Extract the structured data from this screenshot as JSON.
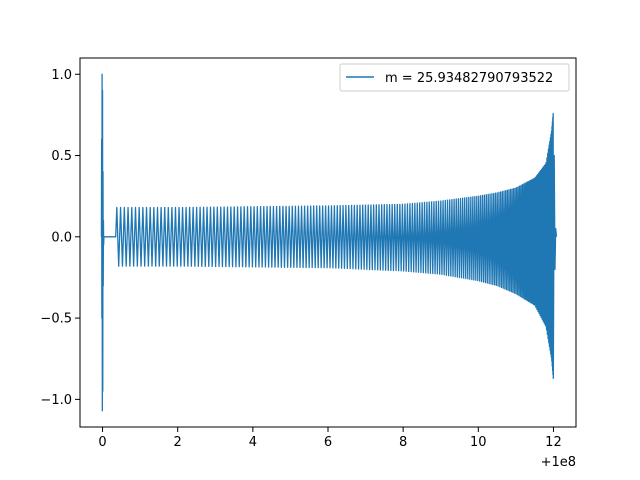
{
  "chart_data": {
    "type": "line",
    "title": "",
    "xlabel": "",
    "ylabel": "",
    "x_offset_label": "+1e8",
    "xlim": [
      -0.6,
      12.6
    ],
    "ylim": [
      -1.17,
      1.1
    ],
    "x_ticks": [
      0,
      2,
      4,
      6,
      8,
      10,
      12
    ],
    "x_tick_labels": [
      "0",
      "2",
      "4",
      "6",
      "8",
      "10",
      "12"
    ],
    "y_ticks": [
      -1.0,
      -0.5,
      0.0,
      0.5,
      1.0
    ],
    "y_tick_labels": [
      "−1.0",
      "−0.5",
      "0.0",
      "0.5",
      "1.0"
    ],
    "grid": false,
    "legend_position": "top-right",
    "series": [
      {
        "name": "m = 25.93482790793522",
        "color": "#1f77b4",
        "description": "oscillating signal; initial spike near x=0 reaching 1.0 and -1.07, flat until x≈0.35, then oscillation with envelope ≈0.18 growing to ≈0.78 at x≈12",
        "envelope_x": [
          0.4,
          2,
          4,
          6,
          8,
          9,
          10,
          10.5,
          11,
          11.5,
          11.8,
          11.95,
          12.0
        ],
        "envelope_upper": [
          0.18,
          0.18,
          0.185,
          0.19,
          0.2,
          0.22,
          0.25,
          0.27,
          0.3,
          0.36,
          0.45,
          0.65,
          0.78
        ],
        "envelope_lower": [
          -0.18,
          -0.18,
          -0.185,
          -0.19,
          -0.21,
          -0.23,
          -0.27,
          -0.3,
          -0.35,
          -0.42,
          -0.55,
          -0.75,
          -0.88
        ],
        "spike": {
          "x": 0.0,
          "max": 1.0,
          "min": -1.07
        }
      }
    ]
  }
}
